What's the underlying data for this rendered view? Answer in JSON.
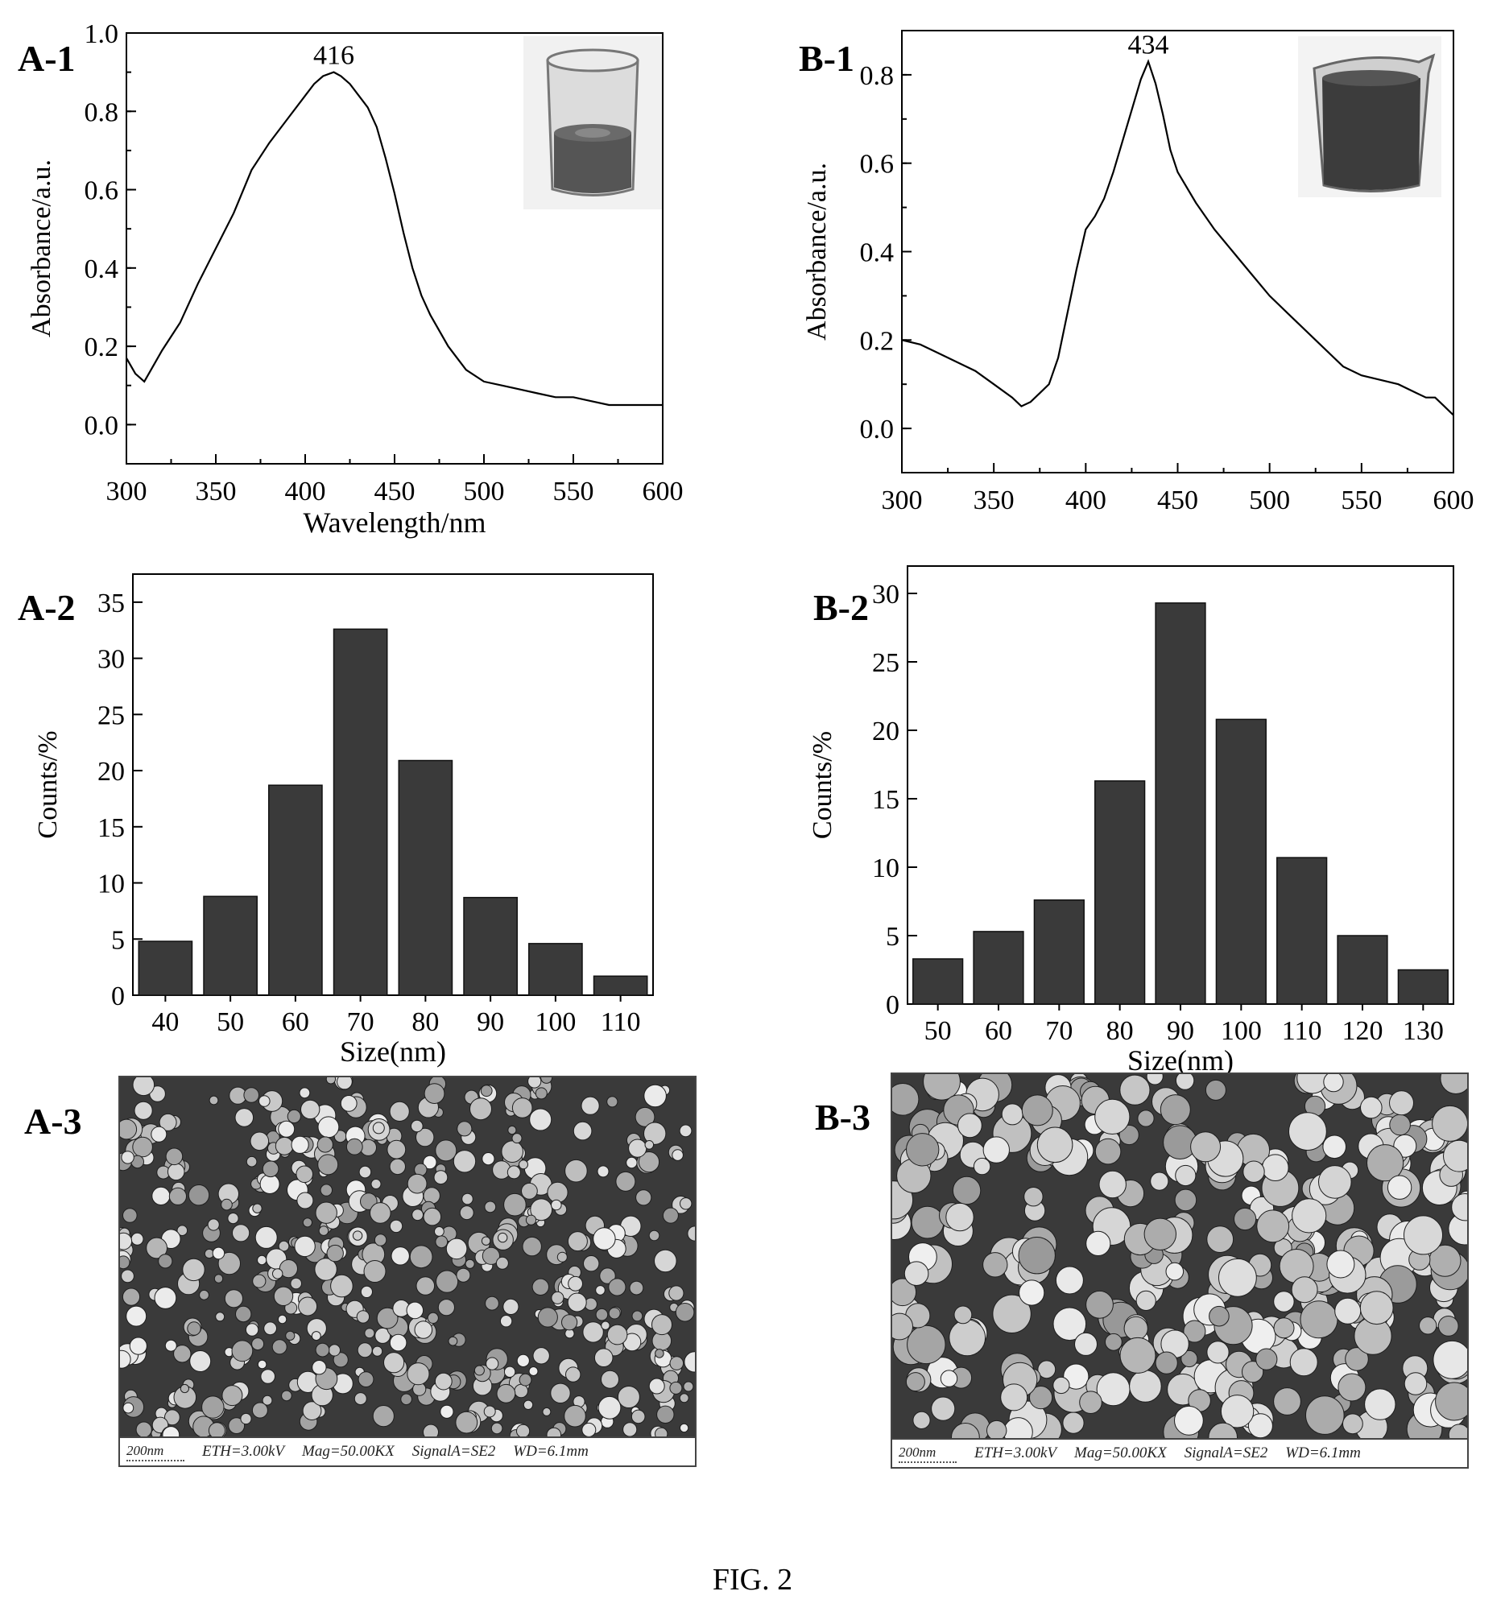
{
  "panels": {
    "a1": "A-1",
    "b1": "B-1",
    "a2": "A-2",
    "b2": "B-2",
    "a3": "A-3",
    "b3": "B-3"
  },
  "figure_caption": "FIG. 2",
  "sem": {
    "a": {
      "scale": "200nm",
      "eth": "ETH=3.00kV",
      "mag": "Mag=50.00KX",
      "signal": "SignalA=SE2",
      "wd": "WD=6.1mm"
    },
    "b": {
      "scale": "200nm",
      "eth": "ETH=3.00kV",
      "mag": "Mag=50.00KX",
      "signal": "SignalA=SE2",
      "wd": "WD=6.1mm"
    }
  },
  "chart_data": [
    {
      "id": "A-1",
      "type": "line",
      "xlabel": "Wavelength/nm",
      "ylabel": "Absorbance/a.u.",
      "xlim": [
        300,
        600
      ],
      "ylim": [
        -0.1,
        1.0
      ],
      "xticks": [
        "300",
        "350",
        "400",
        "450",
        "500",
        "550",
        "600"
      ],
      "yticks": [
        "0.0",
        "0.2",
        "0.4",
        "0.6",
        "0.8",
        "1.0"
      ],
      "annotations": [
        {
          "text": "416",
          "x": 416,
          "y": 0.9
        }
      ],
      "x": [
        300,
        305,
        310,
        315,
        320,
        330,
        340,
        350,
        360,
        370,
        380,
        390,
        400,
        405,
        410,
        416,
        420,
        425,
        430,
        435,
        440,
        445,
        450,
        455,
        460,
        465,
        470,
        480,
        490,
        500,
        510,
        520,
        530,
        540,
        550,
        560,
        570,
        580,
        590,
        600
      ],
      "y": [
        0.17,
        0.13,
        0.11,
        0.15,
        0.19,
        0.26,
        0.36,
        0.45,
        0.54,
        0.65,
        0.72,
        0.78,
        0.84,
        0.87,
        0.89,
        0.9,
        0.89,
        0.87,
        0.84,
        0.81,
        0.76,
        0.68,
        0.59,
        0.49,
        0.4,
        0.33,
        0.28,
        0.2,
        0.14,
        0.11,
        0.1,
        0.09,
        0.08,
        0.07,
        0.07,
        0.06,
        0.05,
        0.05,
        0.05,
        0.05
      ]
    },
    {
      "id": "B-1",
      "type": "line",
      "xlabel": "",
      "ylabel": "Absorbance/a.u.",
      "xlim": [
        300,
        600
      ],
      "ylim": [
        -0.1,
        0.9
      ],
      "xticks": [
        "300",
        "350",
        "400",
        "450",
        "500",
        "550",
        "600"
      ],
      "yticks": [
        "0.0",
        "0.2",
        "0.4",
        "0.6",
        "0.8"
      ],
      "annotations": [
        {
          "text": "434",
          "x": 434,
          "y": 0.83
        }
      ],
      "x": [
        300,
        310,
        320,
        330,
        340,
        350,
        360,
        365,
        370,
        375,
        380,
        385,
        390,
        395,
        400,
        405,
        410,
        415,
        420,
        425,
        430,
        434,
        438,
        442,
        446,
        450,
        460,
        470,
        480,
        490,
        500,
        510,
        520,
        530,
        540,
        550,
        560,
        570,
        580,
        585,
        590,
        595,
        600
      ],
      "y": [
        0.2,
        0.19,
        0.17,
        0.15,
        0.13,
        0.1,
        0.07,
        0.05,
        0.06,
        0.08,
        0.1,
        0.16,
        0.26,
        0.36,
        0.45,
        0.48,
        0.52,
        0.58,
        0.65,
        0.72,
        0.79,
        0.83,
        0.78,
        0.71,
        0.63,
        0.58,
        0.51,
        0.45,
        0.4,
        0.35,
        0.3,
        0.26,
        0.22,
        0.18,
        0.14,
        0.12,
        0.11,
        0.1,
        0.08,
        0.07,
        0.07,
        0.05,
        0.03
      ]
    },
    {
      "id": "A-2",
      "type": "bar",
      "xlabel": "Size(nm)",
      "ylabel": "Counts/%",
      "ylim": [
        0,
        37.5
      ],
      "categories": [
        "40",
        "50",
        "60",
        "70",
        "80",
        "90",
        "100",
        "110"
      ],
      "yticks": [
        "0",
        "5",
        "10",
        "15",
        "20",
        "25",
        "30",
        "35"
      ],
      "values": [
        4.8,
        8.8,
        18.7,
        32.6,
        20.9,
        8.7,
        4.6,
        1.7
      ]
    },
    {
      "id": "B-2",
      "type": "bar",
      "xlabel": "Size(nm)",
      "ylabel": "Counts/%",
      "ylim": [
        0,
        32
      ],
      "categories": [
        "50",
        "60",
        "70",
        "80",
        "90",
        "100",
        "110",
        "120",
        "130"
      ],
      "yticks": [
        "0",
        "5",
        "10",
        "15",
        "20",
        "25",
        "30"
      ],
      "values": [
        3.3,
        5.3,
        7.6,
        16.3,
        29.3,
        20.8,
        10.7,
        5.0,
        2.5
      ]
    }
  ]
}
